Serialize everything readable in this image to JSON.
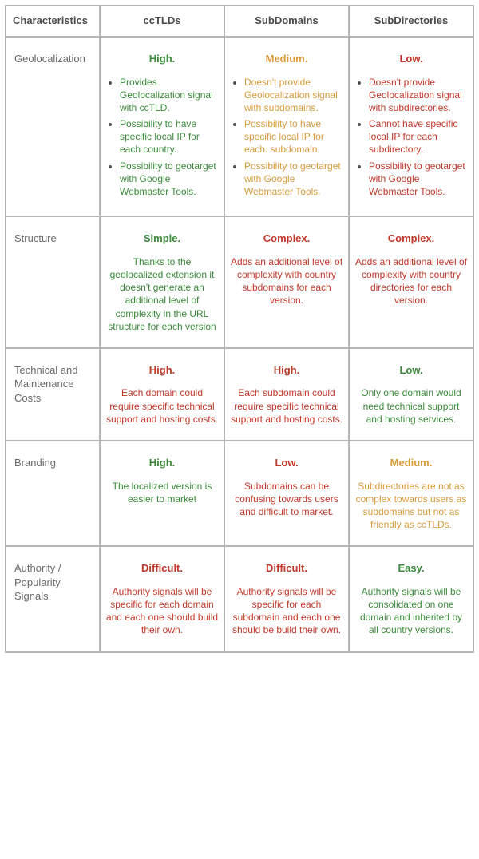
{
  "colors": {
    "green": "#3a8a3a",
    "orange": "#d79a3a",
    "red": "#c0392b",
    "border": "#b6b6b6",
    "text": "#6a6a6a",
    "header": "#4a4a4a"
  },
  "typography": {
    "font_family": "Helvetica Neue, Arial, sans-serif",
    "header_fontsize": 13,
    "cell_fontsize": 12,
    "rating_fontsize": 13
  },
  "columns": [
    "Characteristics",
    "ccTLDs",
    "SubDomains",
    "SubDirectories"
  ],
  "rows": [
    {
      "label": "Geolocalization",
      "cells": [
        {
          "rating": "High.",
          "color": "green",
          "bullets": [
            "Provides Geolocalization signal with ccTLD.",
            "Possibility to have specific local IP for each country.",
            "Possibility to geotarget with Google Webmaster Tools."
          ]
        },
        {
          "rating": "Medium.",
          "color": "orange",
          "bullets": [
            "Doesn't provide Geolocalization signal with subdomains.",
            "Possibility to have specific local IP for each. subdomain.",
            "Possibility to geotarget with Google Webmaster Tools."
          ]
        },
        {
          "rating": "Low.",
          "color": "red",
          "bullets": [
            "Doesn't provide Geolocalization signal with subdirectories.",
            "Cannot have specific local IP for each subdirectory.",
            "Possibility to geotarget with Google Webmaster Tools."
          ]
        }
      ]
    },
    {
      "label": "Structure",
      "cells": [
        {
          "rating": "Simple.",
          "color": "green",
          "desc": "Thanks to the geolocalized extension it doesn't generate an additional level of complexity in the URL structure for each version"
        },
        {
          "rating": "Complex.",
          "color": "red",
          "desc": "Adds an additional level of complexity with country subdomains for each version."
        },
        {
          "rating": "Complex.",
          "color": "red",
          "desc": "Adds an additional level of complexity with country directories for each version."
        }
      ]
    },
    {
      "label": "Technical and Maintenance Costs",
      "cells": [
        {
          "rating": "High.",
          "color": "red",
          "desc": "Each domain could require specific technical support and hosting costs."
        },
        {
          "rating": "High.",
          "color": "red",
          "desc": "Each subdomain could require specific technical support and hosting costs."
        },
        {
          "rating": "Low.",
          "color": "green",
          "desc": "Only one domain would need technical support and hosting services."
        }
      ]
    },
    {
      "label": "Branding",
      "cells": [
        {
          "rating": "High.",
          "color": "green",
          "desc": "The localized version is easier to market"
        },
        {
          "rating": "Low.",
          "color": "red",
          "desc": "Subdomains can be confusing towards users and difficult to market."
        },
        {
          "rating": "Medium.",
          "color": "orange",
          "desc": "Subdirectories are not as complex towards users as subdomains but not as friendly as ccTLDs."
        }
      ]
    },
    {
      "label": "Authority / Popularity Signals",
      "cells": [
        {
          "rating": "Difficult.",
          "color": "red",
          "desc": "Authority signals will be specific for each domain and each one should build their own."
        },
        {
          "rating": "Difficult.",
          "color": "red",
          "desc": "Authority signals will be specific for each subdomain and each one should be build their own."
        },
        {
          "rating": "Easy.",
          "color": "green",
          "desc": "Authority signals will be consolidated on one domain and inherited by all country versions."
        }
      ]
    }
  ]
}
